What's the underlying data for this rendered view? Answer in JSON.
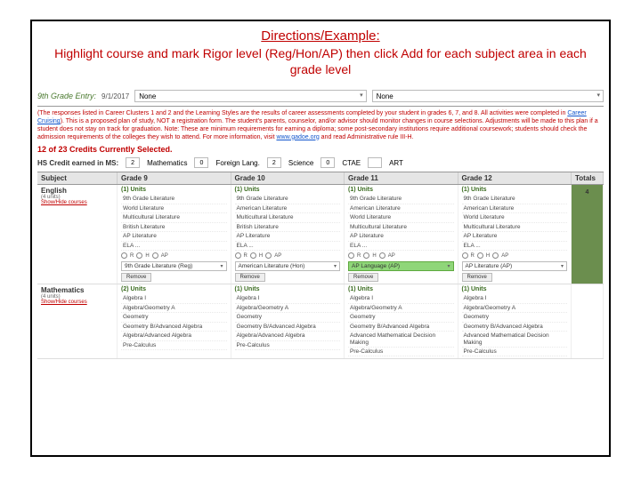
{
  "header": {
    "title": "Directions/Example:",
    "subtitle": "Highlight course and mark Rigor level (Reg/Hon/AP) then click Add for each subject area in each grade level"
  },
  "top": {
    "grade_label": "9th Grade Entry:",
    "date": "9/1/2017",
    "dropdown1": "None",
    "dropdown2": "None"
  },
  "note": {
    "p1_black": "(The responses listed in Career Clusters 1 and 2 and the Learning Styles are the results of career assessments completed by your student in grades 6, 7, and 8. All activities were completed in ",
    "p1_link": "Career Cruising",
    "p1_tail": "). This is a proposed plan of study, NOT a registration form. The student's parents, counselor, and/or advisor should monitor changes in course selections. Adjustments will be made to this plan if a student does not stay on track for graduation.",
    "p2_red": " Note: These are minimum requirements for earning a diploma; some post-secondary institutions require additional coursework; students should check the admission requirements of the colleges they wish to attend. For more information, visit ",
    "p2_link": "www.gadoe.org",
    "p2_tail": " and read Administrative rule III-H."
  },
  "count_line": "12 of 23 Credits Currently Selected.",
  "credits": {
    "label": "HS Credit earned in MS:",
    "items": [
      {
        "n": "2",
        "lbl": "Mathematics"
      },
      {
        "n": "0",
        "lbl": "Foreign Lang."
      },
      {
        "n": "2",
        "lbl": "Science"
      },
      {
        "n": "0",
        "lbl": "CTAE"
      },
      {
        "n": "",
        "lbl": "ART"
      }
    ]
  },
  "grid": {
    "headers": [
      "Subject",
      "Grade 9",
      "Grade 10",
      "Grade 11",
      "Grade 12",
      "Totals"
    ],
    "units_label": "(1) Units"
  },
  "english": {
    "name": "English",
    "sub": "(4 units)",
    "link": "Show/Hide courses",
    "courses_g9": [
      "9th Grade Literature",
      "World Literature",
      "Multicultural Literature",
      "British Literature",
      "AP Literature",
      "ELA ..."
    ],
    "courses_g10": [
      "9th Grade Literature",
      "American Literature",
      "Multicultural Literature",
      "British Literature",
      "AP Literature",
      "ELA ..."
    ],
    "courses_g11": [
      "9th Grade Literature",
      "American Literature",
      "World Literature",
      "Multicultural Literature",
      "AP Literature",
      "ELA ..."
    ],
    "courses_g12": [
      "9th Grade Literature",
      "American Literature",
      "World Literature",
      "Multicultural Literature",
      "AP Literature",
      "ELA ..."
    ],
    "selected_g9": "9th Grade Literature (Reg)",
    "selected_g10": "American Literature (Hon)",
    "selected_g11": "AP Language (AP)",
    "selected_g12": "AP Literature (AP)",
    "remove": "Remove",
    "total": "4"
  },
  "math": {
    "name": "Mathematics",
    "sub": "(4 units)",
    "link": "Show/Hide courses",
    "courses": [
      "Algebra I",
      "Algebra/Geometry A",
      "Geometry",
      "Geometry B/Advanced Algebra",
      "Algebra/Advanced Algebra",
      "Pre-Calculus"
    ],
    "courses_g11": [
      "Algebra I",
      "Algebra/Geometry A",
      "Geometry",
      "Geometry B/Advanced Algebra",
      "Advanced Mathematical Decision Making",
      "Pre-Calculus"
    ],
    "courses_g12": [
      "Algebra I",
      "Algebra/Geometry A",
      "Geometry",
      "Geometry B/Advanced Algebra",
      "Advanced Mathematical Decision Making",
      "Pre-Calculus"
    ],
    "units_g9": "(2) Units",
    "total": ""
  },
  "colors": {
    "red": "#c00000",
    "highlight": "#8fd679",
    "total_bg": "#6b8e4e"
  }
}
